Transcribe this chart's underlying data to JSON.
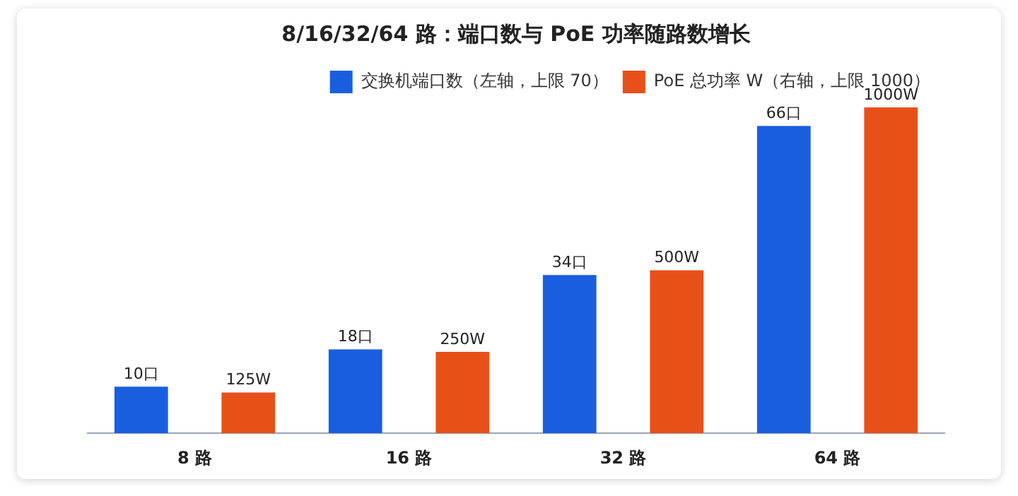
{
  "chart_data": {
    "type": "bar",
    "title": "8/16/32/64 路：端口数与 PoE 功率随路数增长",
    "categories": [
      "8 路",
      "16 路",
      "32 路",
      "64 路"
    ],
    "series": [
      {
        "name": "交换机端口数（左轴，上限 70）",
        "color": "#1a5ee0",
        "values": [
          10,
          18,
          34,
          66
        ],
        "value_labels": [
          "10口",
          "18口",
          "34口",
          "66口"
        ]
      },
      {
        "name": "PoE 总功率 W（右轴，上限 1000）",
        "color": "#e8501a",
        "values": [
          125,
          250,
          500,
          1000
        ],
        "value_labels": [
          "125W",
          "250W",
          "500W",
          "1000W"
        ],
        "axis": "y2"
      }
    ],
    "ylim": [
      0,
      70
    ],
    "y2lim": [
      0,
      1000
    ],
    "tick_labels": "x",
    "grid": false,
    "legend": "top right"
  }
}
